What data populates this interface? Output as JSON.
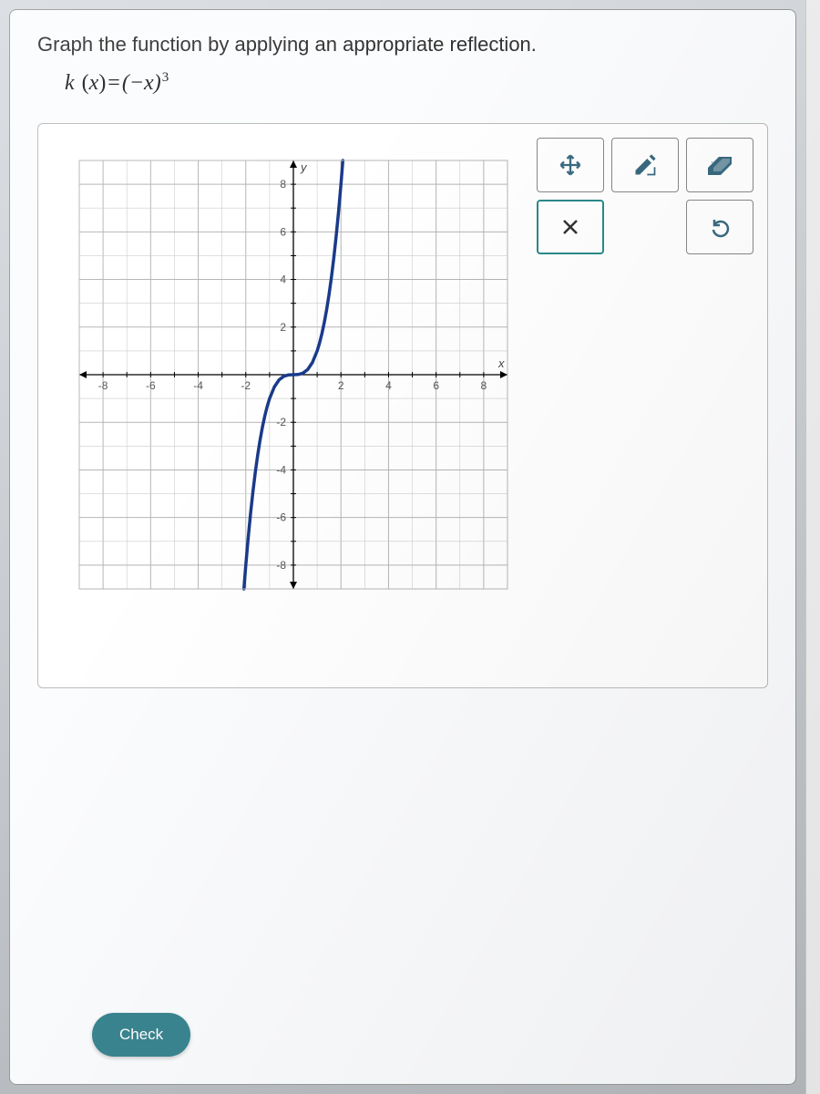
{
  "instruction": "Graph the function by applying an appropriate reflection.",
  "equation": {
    "func_name": "k",
    "var": "x",
    "rhs_base": "(−x)",
    "rhs_exp": "3"
  },
  "graph": {
    "type": "line",
    "x_axis_label": "x",
    "y_axis_label": "y",
    "xlim": [
      -9,
      9
    ],
    "ylim": [
      -9,
      9
    ],
    "xtick_step": 1,
    "ytick_step": 1,
    "x_labels": [
      -8,
      -6,
      -4,
      -2,
      2,
      4,
      6,
      8
    ],
    "y_labels": [
      -8,
      -6,
      -4,
      -2,
      2,
      4,
      6,
      8
    ],
    "grid_color": "#cccccc",
    "major_grid_color": "#b5b5b5",
    "axis_color": "#000000",
    "curve_color": "#1a3a8a",
    "background_color": "#ffffff",
    "curve_width": 3.5,
    "curve_points": [
      [
        -2.08,
        -9
      ],
      [
        -2.0,
        -8.0
      ],
      [
        -1.9,
        -6.859
      ],
      [
        -1.8,
        -5.832
      ],
      [
        -1.7,
        -4.913
      ],
      [
        -1.6,
        -4.096
      ],
      [
        -1.5,
        -3.375
      ],
      [
        -1.4,
        -2.744
      ],
      [
        -1.3,
        -2.197
      ],
      [
        -1.2,
        -1.728
      ],
      [
        -1.1,
        -1.331
      ],
      [
        -1.0,
        -1.0
      ],
      [
        -0.8,
        -0.512
      ],
      [
        -0.6,
        -0.216
      ],
      [
        -0.4,
        -0.064
      ],
      [
        -0.2,
        -0.008
      ],
      [
        0.0,
        0.0
      ],
      [
        0.2,
        0.008
      ],
      [
        0.4,
        0.064
      ],
      [
        0.6,
        0.216
      ],
      [
        0.8,
        0.512
      ],
      [
        1.0,
        1.0
      ],
      [
        1.1,
        1.331
      ],
      [
        1.2,
        1.728
      ],
      [
        1.3,
        2.197
      ],
      [
        1.4,
        2.744
      ],
      [
        1.5,
        3.375
      ],
      [
        1.6,
        4.096
      ],
      [
        1.7,
        4.913
      ],
      [
        1.8,
        5.832
      ],
      [
        1.9,
        6.859
      ],
      [
        2.0,
        8.0
      ],
      [
        2.08,
        9
      ]
    ]
  },
  "tools": {
    "move": "move-tool",
    "edit": "edit-tool",
    "eraser": "eraser-tool",
    "clear": "clear-tool",
    "reset": "reset-tool"
  },
  "check_label": "Check"
}
